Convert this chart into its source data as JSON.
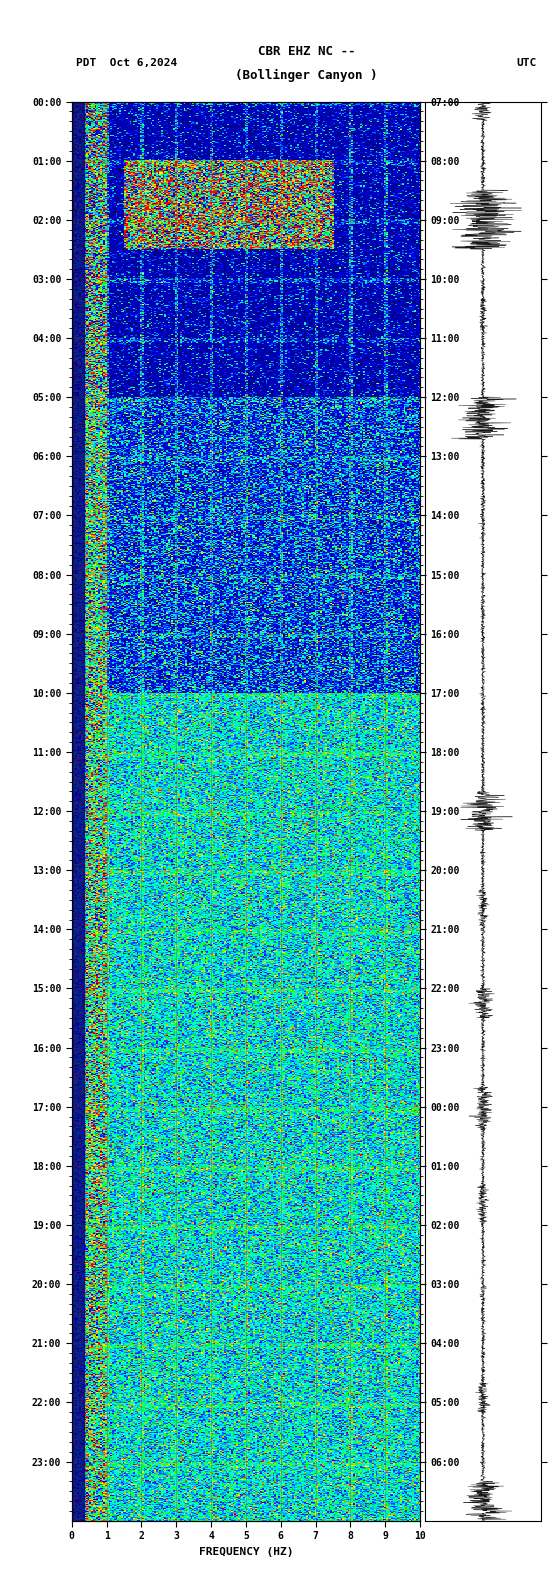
{
  "title_line1": "CBR EHZ NC --",
  "title_line2": "(Bollinger Canyon )",
  "left_label": "PDT",
  "date_label": "Oct 6,2024",
  "right_label": "UTC",
  "xlabel": "FREQUENCY (HZ)",
  "pdt_times": [
    "00:00",
    "01:00",
    "02:00",
    "03:00",
    "04:00",
    "05:00",
    "06:00",
    "07:00",
    "08:00",
    "09:00",
    "10:00",
    "11:00",
    "12:00",
    "13:00",
    "14:00",
    "15:00",
    "16:00",
    "17:00",
    "18:00",
    "19:00",
    "20:00",
    "21:00",
    "22:00",
    "23:00"
  ],
  "utc_times": [
    "07:00",
    "08:00",
    "09:00",
    "10:00",
    "11:00",
    "12:00",
    "13:00",
    "14:00",
    "15:00",
    "16:00",
    "17:00",
    "18:00",
    "19:00",
    "20:00",
    "21:00",
    "22:00",
    "23:00",
    "00:00",
    "01:00",
    "02:00",
    "03:00",
    "04:00",
    "05:00",
    "06:00"
  ],
  "freq_min": 0,
  "freq_max": 10,
  "freq_ticks": [
    0,
    1,
    2,
    3,
    4,
    5,
    6,
    7,
    8,
    9,
    10
  ],
  "background_color": "#ffffff",
  "spectrogram_bg": "#8B0000",
  "blue_band_color": "#00008B",
  "colormap": "hot"
}
